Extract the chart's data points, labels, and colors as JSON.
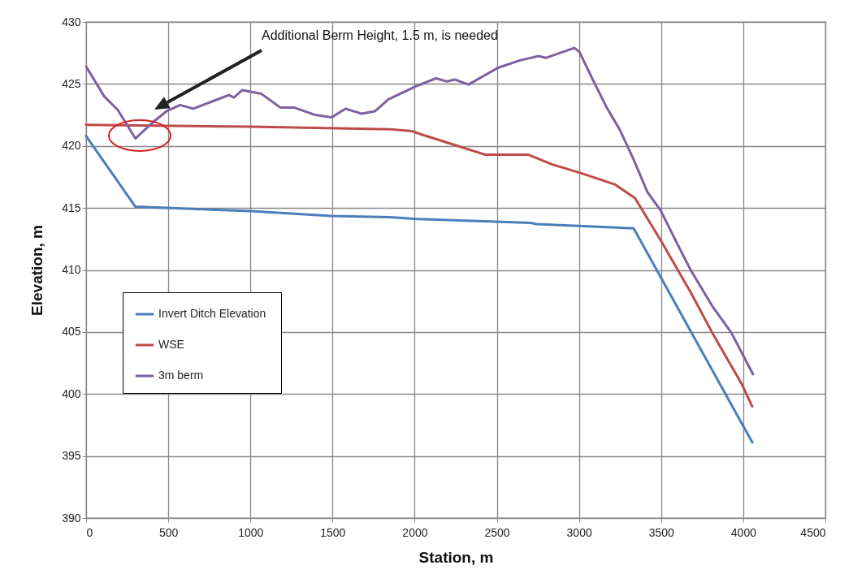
{
  "chart_data": {
    "type": "line",
    "xlabel": "Station, m",
    "ylabel": "Elevation, m",
    "xlim": [
      0,
      4500
    ],
    "xticks": [
      0,
      500,
      1000,
      1500,
      2000,
      2500,
      3000,
      3500,
      4000,
      4500
    ],
    "ylim": [
      390,
      430
    ],
    "yticks": [
      390,
      395,
      400,
      405,
      410,
      415,
      420,
      425,
      430
    ],
    "grid": true,
    "legend": "left",
    "marker": "none",
    "line_style": "solid",
    "annotations": [
      "Additional Berm Height, 1.5 m, is needed"
    ],
    "series": [
      {
        "name": "Invert Ditch  Elevation",
        "color": "#4a7ebb",
        "x": [
          0,
          300,
          1000,
          1494,
          1850,
          2023,
          2705,
          2740,
          3333,
          4055
        ],
        "values": [
          420.8,
          415.1,
          414.75,
          414.35,
          414.25,
          414.1,
          413.8,
          413.7,
          413.35,
          396.1
        ]
      },
      {
        "name": "WSE",
        "color": "#be4b48",
        "x": [
          0,
          1000,
          1850,
          1982,
          2047,
          2262,
          2427,
          2690,
          2839,
          3003,
          3037,
          3218,
          3341,
          3497,
          3680,
          3811,
          3991,
          4055
        ],
        "values": [
          421.7,
          421.55,
          421.35,
          421.2,
          420.9,
          420.0,
          419.3,
          419.3,
          418.5,
          417.85,
          417.7,
          416.9,
          415.8,
          412.4,
          408.2,
          404.95,
          400.8,
          399.0
        ]
      },
      {
        "name": "3m berm",
        "color": "#7d60a0",
        "x": [
          0,
          110,
          193,
          300,
          405,
          490,
          572,
          653,
          770,
          869,
          900,
          950,
          1067,
          1182,
          1265,
          1395,
          1494,
          1578,
          1677,
          1759,
          1840,
          2006,
          2130,
          2196,
          2245,
          2328,
          2507,
          2641,
          2755,
          2797,
          2971,
          3002,
          3086,
          3169,
          3249,
          3333,
          3416,
          3497,
          3595,
          3680,
          3811,
          3927,
          4059
        ],
        "values": [
          426.4,
          424.0,
          422.9,
          420.6,
          421.9,
          422.8,
          423.3,
          423.0,
          423.6,
          424.1,
          423.9,
          424.5,
          424.2,
          423.1,
          423.1,
          422.5,
          422.3,
          423.0,
          422.6,
          422.8,
          423.75,
          424.8,
          425.45,
          425.2,
          425.35,
          424.95,
          426.3,
          426.9,
          427.25,
          427.1,
          427.9,
          427.6,
          425.3,
          423.1,
          421.3,
          418.9,
          416.3,
          414.8,
          412.2,
          410.0,
          407.1,
          404.95,
          401.6
        ]
      }
    ]
  }
}
